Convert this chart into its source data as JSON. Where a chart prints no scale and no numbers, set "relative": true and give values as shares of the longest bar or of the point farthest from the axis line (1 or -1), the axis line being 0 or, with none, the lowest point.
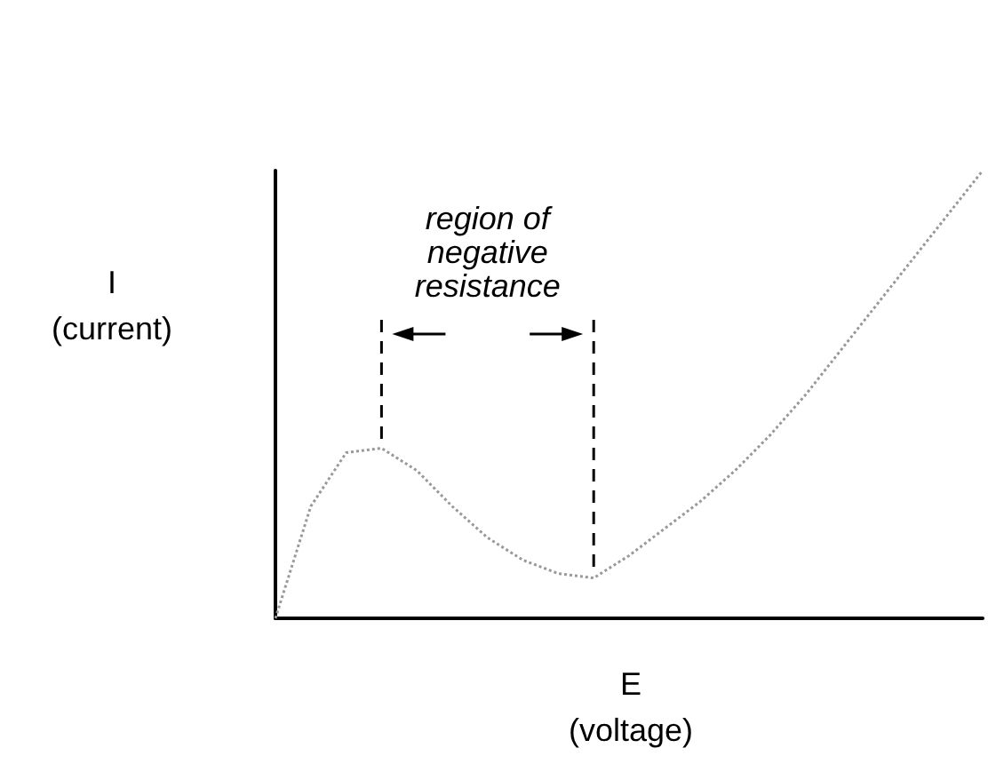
{
  "chart_data": {
    "type": "line",
    "relative": true,
    "xlabel": "E\n(voltage)",
    "ylabel": "I\n(current)",
    "annotations": [
      "region of negative resistance"
    ],
    "categories": [
      null,
      null,
      null,
      null,
      null,
      null,
      null,
      null,
      null,
      null,
      null,
      null,
      null,
      null,
      null,
      null,
      null,
      null,
      null,
      null,
      null
    ],
    "series": [
      {
        "color": "#999999",
        "values": [
          0,
          0.25,
          0.37,
          0.38,
          0.33,
          0.25,
          0.18,
          0.13,
          0.1,
          0.09,
          0.14,
          0.2,
          0.26,
          0.33,
          0.41,
          0.5,
          0.6,
          0.7,
          0.8,
          0.9,
          1
        ]
      }
    ],
    "line_style": "dotted",
    "marker": "none"
  }
}
